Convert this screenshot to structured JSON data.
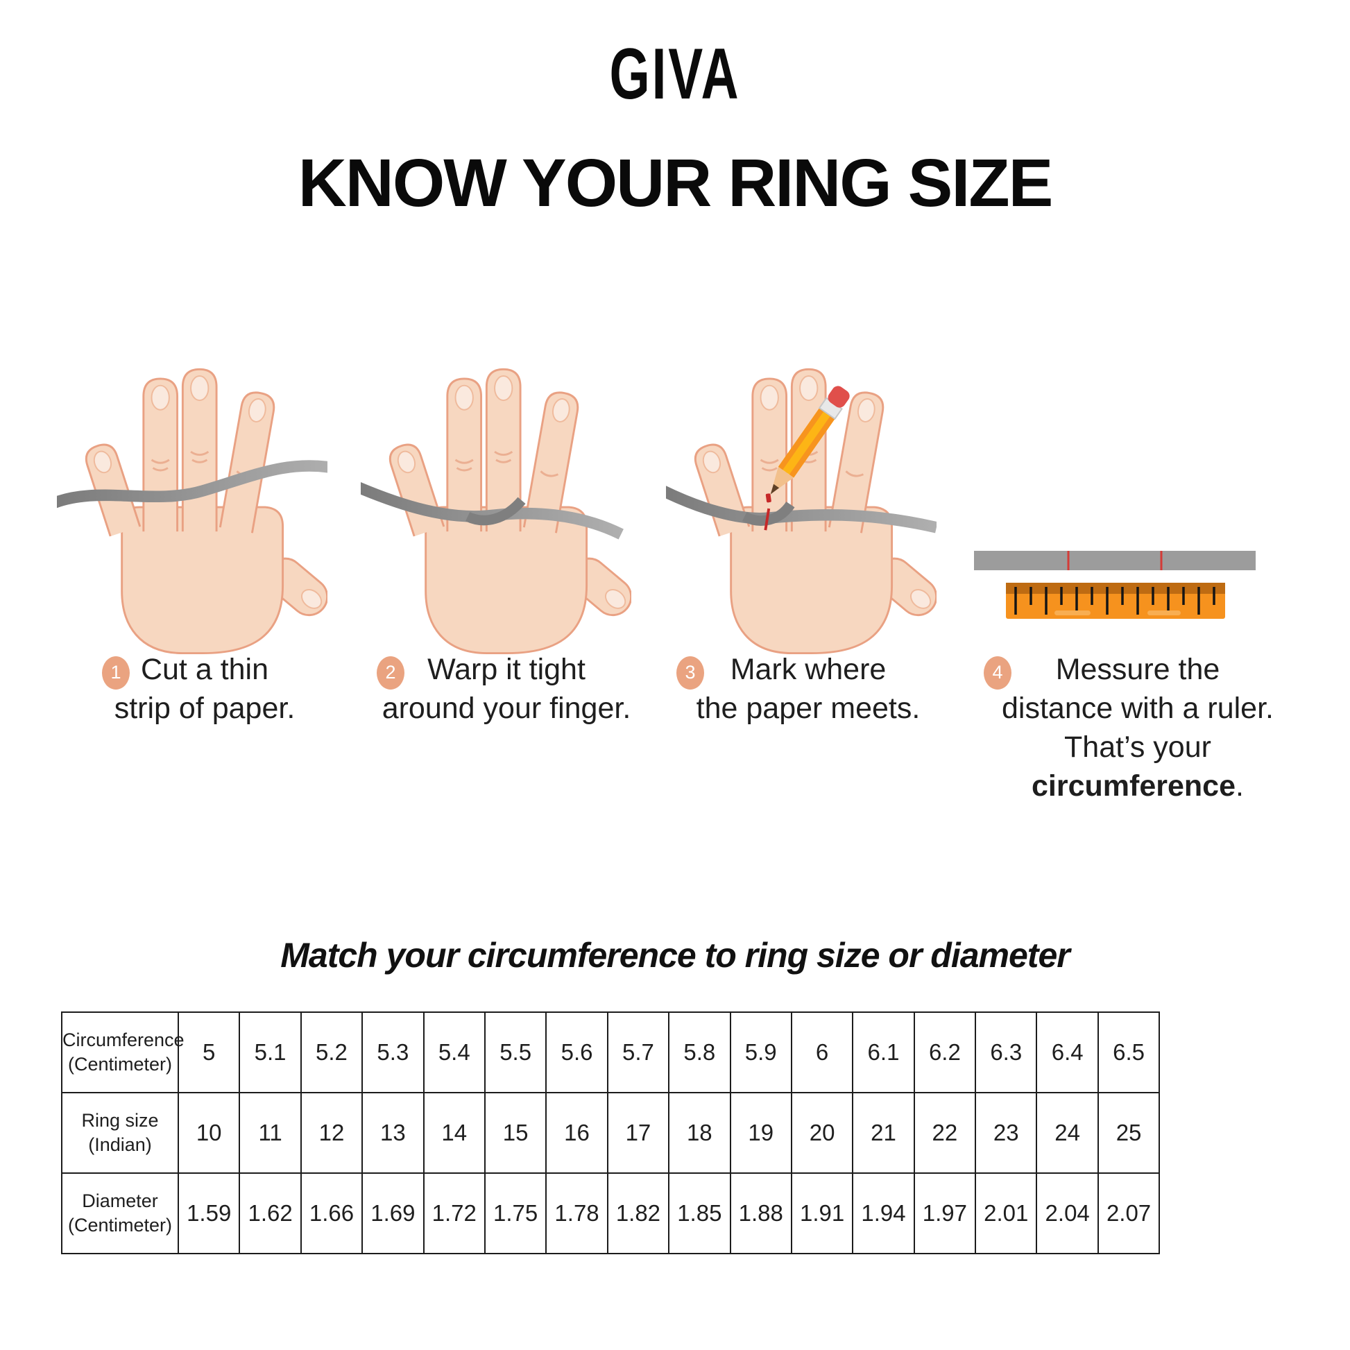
{
  "brand": {
    "logo": "GIVA"
  },
  "title": "KNOW YOUR RING SIZE",
  "steps": [
    {
      "num": "1",
      "line1": "Cut a thin",
      "line2": "strip of paper."
    },
    {
      "num": "2",
      "line1": "Warp it tight",
      "line2": "around your finger."
    },
    {
      "num": "3",
      "line1": "Mark where",
      "line2": "the paper meets."
    },
    {
      "num": "4",
      "line1": "Messure the",
      "line2": "distance with a ruler.",
      "line3_prefix": "That’s your ",
      "line3_bold": "circumference",
      "line3_suffix": "."
    }
  ],
  "subtitle": "Match your circumference to ring size or diameter",
  "table": {
    "rows": [
      {
        "header": "Circumference\n(Centimeter)",
        "values": [
          "5",
          "5.1",
          "5.2",
          "5.3",
          "5.4",
          "5.5",
          "5.6",
          "5.7",
          "5.8",
          "5.9",
          "6",
          "6.1",
          "6.2",
          "6.3",
          "6.4",
          "6.5"
        ]
      },
      {
        "header": "Ring size\n(Indian)",
        "values": [
          "10",
          "11",
          "12",
          "13",
          "14",
          "15",
          "16",
          "17",
          "18",
          "19",
          "20",
          "21",
          "22",
          "23",
          "24",
          "25"
        ]
      },
      {
        "header": "Diameter\n(Centimeter)",
        "values": [
          "1.59",
          "1.62",
          "1.66",
          "1.69",
          "1.72",
          "1.75",
          "1.78",
          "1.82",
          "1.85",
          "1.88",
          "1.91",
          "1.94",
          "1.97",
          "2.01",
          "2.04",
          "2.07"
        ]
      }
    ]
  },
  "illustrations": {
    "step1": "hand-with-paper-strip",
    "step2": "hand-with-strip-wrapped-around-finger",
    "step3": "hand-with-strip-pencil-and-mark",
    "step4": "paper-strip-with-marks-and-ruler"
  },
  "colors": {
    "badge": "#EAA380",
    "skin": "#F7D7C0",
    "skin_outline": "#E9A183",
    "strip_gray": "#9C9C9C",
    "ruler_orange": "#F6921E",
    "mark_red": "#C62828",
    "text": "#1E1E1E"
  }
}
